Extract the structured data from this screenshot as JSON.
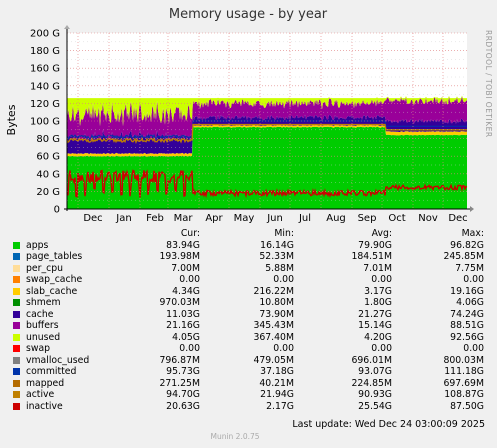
{
  "chart_data": {
    "type": "area",
    "title": "Memory usage - by year",
    "ylabel": "Bytes",
    "side_label": "RRDTOOL / TOBI OETIKER",
    "ylim": [
      0,
      200
    ],
    "y_ticks": [
      "0",
      "20 G",
      "40 G",
      "60 G",
      "80 G",
      "100 G",
      "120 G",
      "140 G",
      "160 G",
      "180 G",
      "200 G"
    ],
    "x_ticks": [
      "Dec",
      "Jan",
      "Feb",
      "Mar",
      "Apr",
      "May",
      "Jun",
      "Jul",
      "Aug",
      "Sep",
      "Oct",
      "Nov",
      "Dec"
    ],
    "grid": true,
    "legend_placement": "bottom",
    "stack_approx_gb": {
      "apps": {
        "before_apr": 60,
        "after_apr": 92,
        "after_oct": 84
      },
      "top_total_gb": 126
    }
  },
  "legend": {
    "headers": {
      "cur": "Cur:",
      "min": "Min:",
      "avg": "Avg:",
      "max": "Max:"
    },
    "rows": [
      {
        "name": "apps",
        "color": "#00cc00",
        "cur": "83.94G",
        "min": "16.14G",
        "avg": "79.90G",
        "max": "96.82G"
      },
      {
        "name": "page_tables",
        "color": "#0066b3",
        "cur": "193.98M",
        "min": "52.33M",
        "avg": "184.51M",
        "max": "245.85M"
      },
      {
        "name": "per_cpu",
        "color": "#ffdd99",
        "cur": "7.00M",
        "min": "5.88M",
        "avg": "7.01M",
        "max": "7.75M"
      },
      {
        "name": "swap_cache",
        "color": "#ff8000",
        "cur": "0.00",
        "min": "0.00",
        "avg": "0.00",
        "max": "0.00"
      },
      {
        "name": "slab_cache",
        "color": "#ffcc00",
        "cur": "4.34G",
        "min": "216.22M",
        "avg": "3.17G",
        "max": "19.16G"
      },
      {
        "name": "shmem",
        "color": "#008f00",
        "cur": "970.03M",
        "min": "10.80M",
        "avg": "1.80G",
        "max": "4.06G"
      },
      {
        "name": "cache",
        "color": "#330099",
        "cur": "11.03G",
        "min": "73.90M",
        "avg": "21.27G",
        "max": "74.24G"
      },
      {
        "name": "buffers",
        "color": "#990099",
        "cur": "21.16G",
        "min": "345.43M",
        "avg": "15.14G",
        "max": "88.51G"
      },
      {
        "name": "unused",
        "color": "#ccff00",
        "cur": "4.05G",
        "min": "367.40M",
        "avg": "4.20G",
        "max": "92.56G"
      },
      {
        "name": "swap",
        "color": "#ff0000",
        "cur": "0.00",
        "min": "0.00",
        "avg": "0.00",
        "max": "0.00"
      },
      {
        "name": "vmalloc_used",
        "color": "#808080",
        "cur": "796.87M",
        "min": "479.05M",
        "avg": "696.01M",
        "max": "800.03M"
      },
      {
        "name": "committed",
        "color": "#0033aa",
        "cur": "95.73G",
        "min": "37.18G",
        "avg": "93.07G",
        "max": "111.18G"
      },
      {
        "name": "mapped",
        "color": "#b36b00",
        "cur": "271.25M",
        "min": "40.21M",
        "avg": "224.85M",
        "max": "697.69M"
      },
      {
        "name": "active",
        "color": "#c08000",
        "cur": "94.70G",
        "min": "21.94G",
        "avg": "90.93G",
        "max": "108.87G"
      },
      {
        "name": "inactive",
        "color": "#cc0000",
        "cur": "20.63G",
        "min": "2.17G",
        "avg": "25.54G",
        "max": "87.50G"
      }
    ]
  },
  "footer": {
    "last_update": "Last update: Wed Dec 24 03:00:09 2025",
    "version": "Munin 2.0.75"
  }
}
